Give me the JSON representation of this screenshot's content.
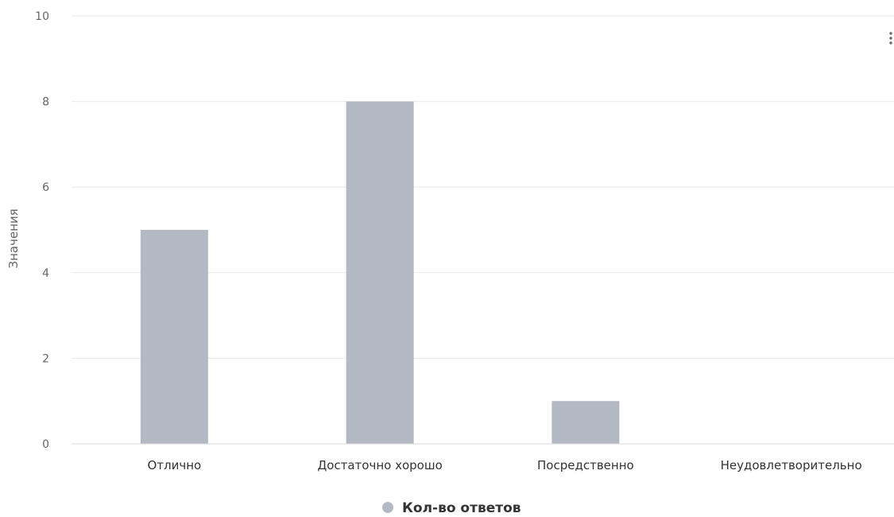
{
  "chart_data": {
    "type": "bar",
    "categories": [
      "Отлично",
      "Достаточно хорошо",
      "Посредственно",
      "Неудовлетворительно"
    ],
    "series": [
      {
        "name": "Кол-во ответов",
        "values": [
          5,
          8,
          1,
          0
        ],
        "color": "#b3b9c3"
      }
    ],
    "ylabel": "Значения",
    "ylim": [
      0,
      10
    ],
    "yticks": [
      0,
      2,
      4,
      6,
      8,
      10
    ],
    "grid": true,
    "legend": "bottom-center"
  },
  "menu_icon": "context-menu-icon"
}
